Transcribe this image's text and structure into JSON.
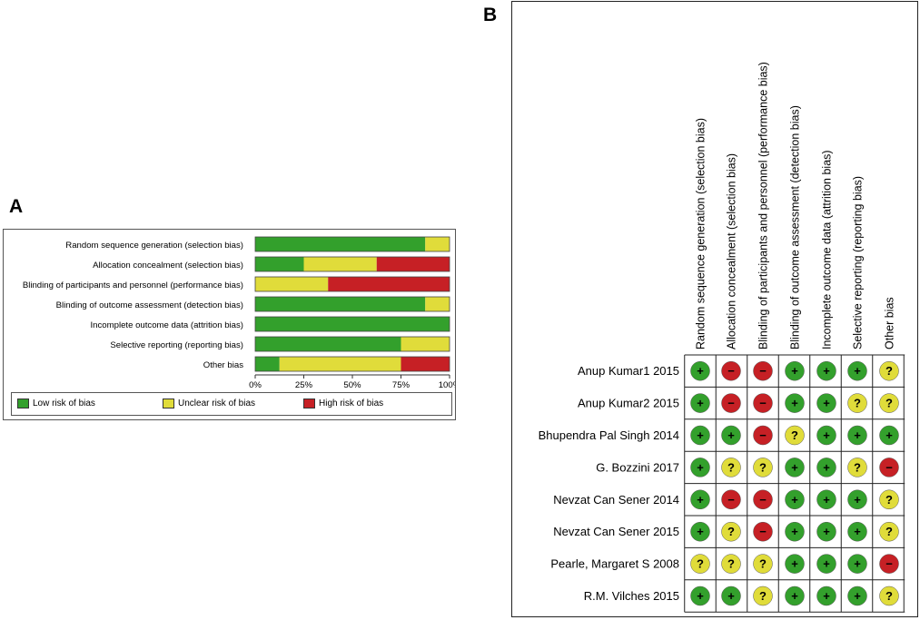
{
  "panel_labels": {
    "a": "A",
    "b": "B"
  },
  "colors": {
    "low": "#33a02c",
    "unclear": "#e0dc3a",
    "high": "#c62025"
  },
  "chart_data": [
    {
      "type": "bar",
      "orientation": "horizontal-stacked-percent",
      "title": "",
      "categories": [
        "Random sequence generation (selection bias)",
        "Allocation concealment (selection bias)",
        "Blinding of participants and personnel (performance bias)",
        "Blinding of outcome assessment (detection bias)",
        "Incomplete outcome data (attrition bias)",
        "Selective reporting (reporting bias)",
        "Other bias"
      ],
      "series": [
        {
          "name": "Low risk of bias",
          "key": "low",
          "values": [
            87.5,
            25,
            0,
            87.5,
            100,
            75,
            12.5
          ]
        },
        {
          "name": "Unclear risk of bias",
          "key": "unclear",
          "values": [
            12.5,
            37.5,
            37.5,
            12.5,
            0,
            25,
            62.5
          ]
        },
        {
          "name": "High risk of bias",
          "key": "high",
          "values": [
            0,
            37.5,
            62.5,
            0,
            0,
            0,
            25
          ]
        }
      ],
      "xlim": [
        0,
        100
      ],
      "xticks": [
        "0%",
        "25%",
        "50%",
        "75%",
        "100%"
      ],
      "legend": [
        "Low risk of bias",
        "Unclear risk of bias",
        "High risk of bias"
      ]
    },
    {
      "type": "table",
      "title": "",
      "columns": [
        "Random sequence generation (selection bias)",
        "Allocation concealment (selection bias)",
        "Blinding of participants and personnel (performance bias)",
        "Blinding of outcome assessment (detection bias)",
        "Incomplete outcome data (attrition bias)",
        "Selective reporting (reporting bias)",
        "Other bias"
      ],
      "studies": [
        {
          "name": "Anup Kumar1 2015",
          "ratings": [
            "low",
            "high",
            "high",
            "low",
            "low",
            "low",
            "unclear"
          ]
        },
        {
          "name": "Anup Kumar2 2015",
          "ratings": [
            "low",
            "high",
            "high",
            "low",
            "low",
            "unclear",
            "unclear"
          ]
        },
        {
          "name": "Bhupendra Pal Singh 2014",
          "ratings": [
            "low",
            "low",
            "high",
            "unclear",
            "low",
            "low",
            "low"
          ]
        },
        {
          "name": "G. Bozzini 2017",
          "ratings": [
            "low",
            "unclear",
            "unclear",
            "low",
            "low",
            "unclear",
            "high"
          ]
        },
        {
          "name": "Nevzat Can Sener 2014",
          "ratings": [
            "low",
            "high",
            "high",
            "low",
            "low",
            "low",
            "unclear"
          ]
        },
        {
          "name": "Nevzat Can Sener 2015",
          "ratings": [
            "low",
            "unclear",
            "high",
            "low",
            "low",
            "low",
            "unclear"
          ]
        },
        {
          "name": "Pearle, Margaret S 2008",
          "ratings": [
            "unclear",
            "unclear",
            "unclear",
            "low",
            "low",
            "low",
            "high"
          ]
        },
        {
          "name": "R.M. Vilches 2015",
          "ratings": [
            "low",
            "low",
            "unclear",
            "low",
            "low",
            "low",
            "unclear"
          ]
        }
      ],
      "symbols": {
        "low": "+",
        "unclear": "?",
        "high": "−"
      }
    }
  ]
}
